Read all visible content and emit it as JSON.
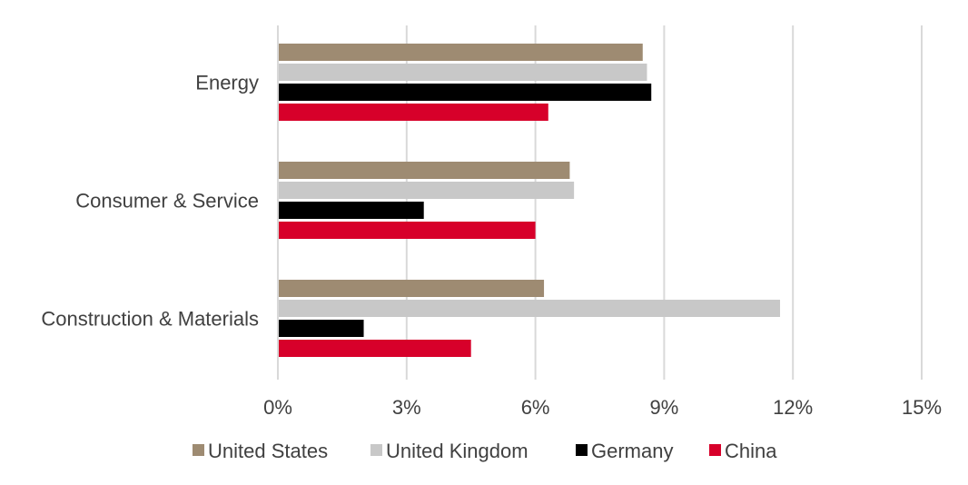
{
  "chart_data": {
    "type": "bar",
    "orientation": "horizontal",
    "title": "",
    "xlabel": "",
    "ylabel": "",
    "categories": [
      "Energy",
      "Consumer & Service",
      "Construction & Materials"
    ],
    "series": [
      {
        "name": "United States",
        "color": "#9e8b72",
        "values": [
          8.5,
          6.8,
          6.2
        ]
      },
      {
        "name": "United Kingdom",
        "color": "#c8c8c8",
        "values": [
          8.6,
          6.9,
          11.7
        ]
      },
      {
        "name": "Germany",
        "color": "#000000",
        "values": [
          8.7,
          3.4,
          2.0
        ]
      },
      {
        "name": "China",
        "color": "#d7002a",
        "values": [
          6.3,
          6.0,
          4.5
        ]
      }
    ],
    "xlim": [
      0,
      15
    ],
    "xticks": [
      0,
      3,
      6,
      9,
      12,
      15
    ],
    "tick_labels": [
      "0%",
      "3%",
      "6%",
      "9%",
      "12%",
      "15%"
    ],
    "value_format": "percent",
    "grid": true,
    "legend_position": "bottom"
  }
}
